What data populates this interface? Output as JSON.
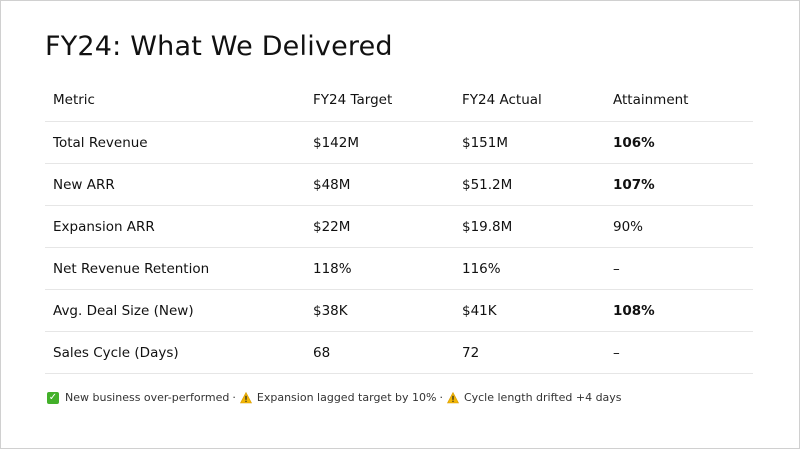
{
  "title": "FY24: What We Delivered",
  "table": {
    "headers": [
      "Metric",
      "FY24 Target",
      "FY24 Actual",
      "Attainment"
    ],
    "rows": [
      {
        "metric": "Total Revenue",
        "target": "$142M",
        "actual": "$151M",
        "attainment": "106%",
        "highlight": true
      },
      {
        "metric": "New ARR",
        "target": "$48M",
        "actual": "$51.2M",
        "attainment": "107%",
        "highlight": true
      },
      {
        "metric": "Expansion ARR",
        "target": "$22M",
        "actual": "$19.8M",
        "attainment": "90%",
        "highlight": false
      },
      {
        "metric": "Net Revenue Retention",
        "target": "118%",
        "actual": "116%",
        "attainment": "–",
        "highlight": false
      },
      {
        "metric": "Avg. Deal Size (New)",
        "target": "$38K",
        "actual": "$41K",
        "attainment": "108%",
        "highlight": true
      },
      {
        "metric": "Sales Cycle (Days)",
        "target": "68",
        "actual": "72",
        "attainment": "–",
        "highlight": false
      }
    ]
  },
  "footnote": {
    "items": [
      {
        "icon": "check-icon",
        "text": "New business over-performed"
      },
      {
        "icon": "warning-icon",
        "text": "Expansion lagged target by 10%"
      },
      {
        "icon": "warning-icon",
        "text": "Cycle length drifted +4 days"
      }
    ],
    "separator": "·"
  },
  "colors": {
    "check": "#43b02a",
    "warning": "#f2b705",
    "divider": "#e6e6e6"
  }
}
